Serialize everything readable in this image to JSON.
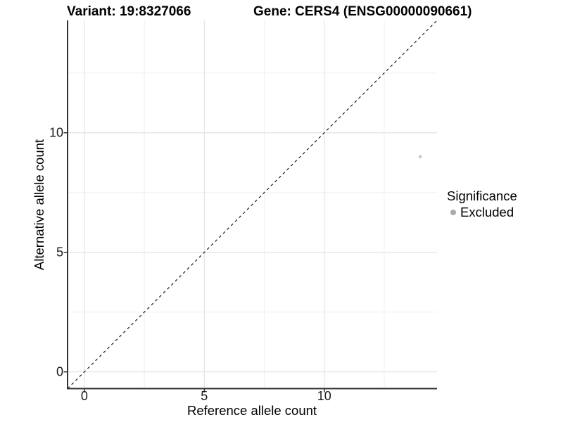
{
  "chart_data": {
    "type": "scatter",
    "title_left": "Variant: 19:8327066",
    "title_right": "Gene: CERS4 (ENSG00000090661)",
    "xlabel": "Reference allele count",
    "ylabel": "Alternative allele count",
    "xlim": [
      -0.7,
      14.7
    ],
    "ylim": [
      -0.7,
      14.7
    ],
    "xticks": [
      0,
      5,
      10
    ],
    "yticks": [
      0,
      5,
      10
    ],
    "xticks_minor": [
      2.5,
      7.5,
      12.5
    ],
    "yticks_minor": [
      2.5,
      7.5,
      12.5
    ],
    "grid": "major+minor",
    "points": [
      {
        "x": 14,
        "y": 9,
        "series": "Excluded"
      }
    ],
    "reference_line": {
      "equation": "y = x",
      "style": "dashed",
      "from": [
        -0.7,
        -0.7
      ],
      "to": [
        14.7,
        14.7
      ]
    },
    "legend": {
      "title": "Significance",
      "position": "right",
      "items": [
        {
          "label": "Excluded",
          "color": "#a9a9a9"
        }
      ]
    },
    "colors": {
      "point": "#c6c6c6",
      "legend_dot": "#a9a9a9",
      "grid_major": "#e3e3e3",
      "grid_minor": "#f0f0f0",
      "axis_line": "#333333",
      "reference_line": "#1a1a1a",
      "text": "#000000",
      "background": "#ffffff"
    }
  }
}
